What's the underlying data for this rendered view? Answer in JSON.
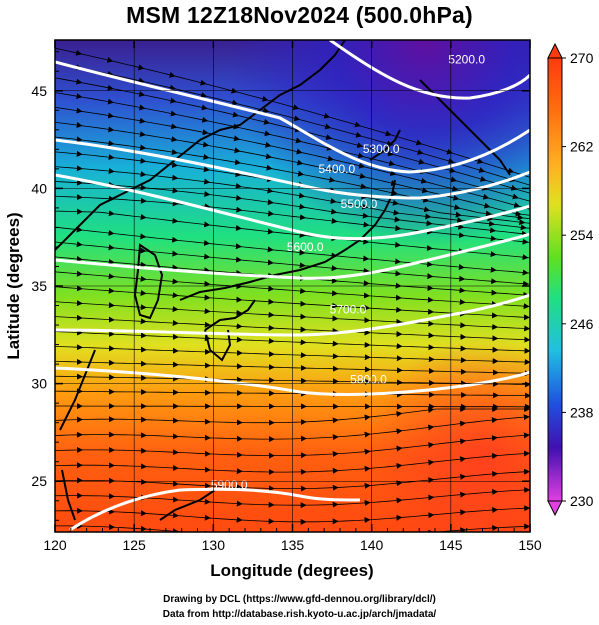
{
  "title": "MSM 12Z18Nov2024 (500.0hPa)",
  "map": {
    "x_axis": {
      "label": "Longitude (degrees)",
      "range": [
        120,
        150
      ],
      "ticks": [
        "120",
        "125",
        "130",
        "135",
        "140",
        "145",
        "150"
      ]
    },
    "y_axis": {
      "label": "Latitude  (degrees)",
      "range": [
        22.4,
        47.6
      ],
      "ticks": [
        "25",
        "30",
        "35",
        "40",
        "45"
      ]
    },
    "grid": true,
    "contour_labels": [
      {
        "text": "5200.0",
        "lon": 146.0,
        "lat": 46.4
      },
      {
        "text": "5300.0",
        "lon": 140.6,
        "lat": 41.8
      },
      {
        "text": "5400.0",
        "lon": 137.8,
        "lat": 40.8
      },
      {
        "text": "5500.0",
        "lon": 139.2,
        "lat": 39.0
      },
      {
        "text": "5600.0",
        "lon": 135.8,
        "lat": 36.8
      },
      {
        "text": "5700.0",
        "lon": 138.5,
        "lat": 33.6
      },
      {
        "text": "5800.0",
        "lon": 139.8,
        "lat": 30.0
      },
      {
        "text": "5900.0",
        "lon": 131.0,
        "lat": 24.6
      }
    ]
  },
  "colorbar": {
    "min": "230",
    "max": "270",
    "labels": [
      "270",
      "262",
      "254",
      "246",
      "238",
      "230"
    ]
  },
  "footer": {
    "line1": "Drawing by DCL (https://www.gfd-dennou.org/library/dcl/)",
    "line2": "Data from http://database.rish.kyoto-u.ac.jp/arch/jmadata/"
  }
}
